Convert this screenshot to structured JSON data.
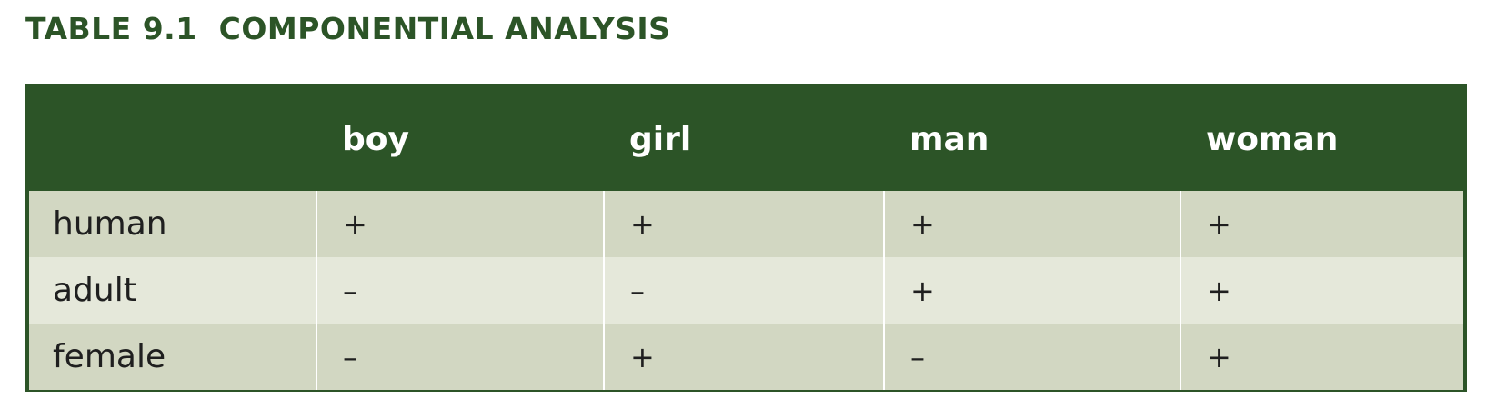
{
  "caption": "TABLE 9.1  COMPONENTIAL ANALYSIS",
  "table": {
    "columns": [
      "",
      "boy",
      "girl",
      "man",
      "woman"
    ],
    "rows": [
      {
        "label": "human",
        "values": [
          "+",
          "+",
          "+",
          "+"
        ]
      },
      {
        "label": "adult",
        "values": [
          "–",
          "–",
          "+",
          "+"
        ]
      },
      {
        "label": "female",
        "values": [
          "–",
          "+",
          "–",
          "+"
        ]
      }
    ]
  },
  "colors": {
    "header_green": "#2c5427",
    "row_dark": "#d2d7c2",
    "row_light": "#e5e8da"
  }
}
